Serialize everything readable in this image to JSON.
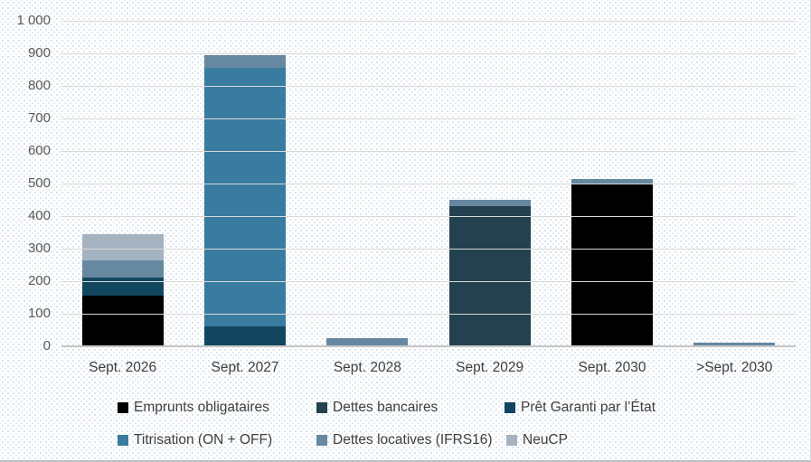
{
  "chart_data": {
    "type": "bar",
    "variant": "stacked",
    "title": "",
    "categories": [
      "Sept. 2026",
      "Sept. 2027",
      "Sept. 2028",
      "Sept. 2029",
      "Sept. 2030",
      ">Sept. 2030"
    ],
    "series": [
      {
        "name": "Emprunts obligataires",
        "color": "#000000",
        "values": [
          155,
          0,
          0,
          0,
          500,
          0
        ]
      },
      {
        "name": "Dettes bancaires",
        "color": "#23414e",
        "values": [
          0,
          0,
          0,
          430,
          0,
          0
        ]
      },
      {
        "name": "Prêt Garanti par l’État",
        "color": "#11465e",
        "values": [
          55,
          60,
          0,
          0,
          0,
          0
        ]
      },
      {
        "name": "Titrisation (ON + OFF)",
        "color": "#3a7ba0",
        "values": [
          0,
          795,
          0,
          0,
          0,
          0
        ]
      },
      {
        "name": "Dettes locatives (IFRS16)",
        "color": "#6788a1",
        "values": [
          55,
          40,
          25,
          20,
          15,
          10
        ]
      },
      {
        "name": "NeuCP",
        "color": "#a5b3c1",
        "values": [
          80,
          0,
          0,
          0,
          0,
          0
        ]
      }
    ],
    "totals": [
      345,
      895,
      25,
      450,
      515,
      10
    ],
    "y_axis": {
      "min": 0,
      "max": 1000,
      "step": 100,
      "tick_labels": [
        "0",
        "100",
        "200",
        "300",
        "400",
        "500",
        "600",
        "700",
        "800",
        "900",
        "1 000"
      ]
    },
    "x_axis_label": "",
    "y_axis_label": "",
    "grid": true,
    "legend_position": "bottom"
  },
  "colors": {
    "gridline": "#d9d9d9",
    "baseline": "#c6c6c6",
    "y_tick_text": "#595959",
    "x_tick_text": "#3f3f3f",
    "legend_text": "#3f3f3f",
    "background_dots": "#d9e3eb"
  }
}
